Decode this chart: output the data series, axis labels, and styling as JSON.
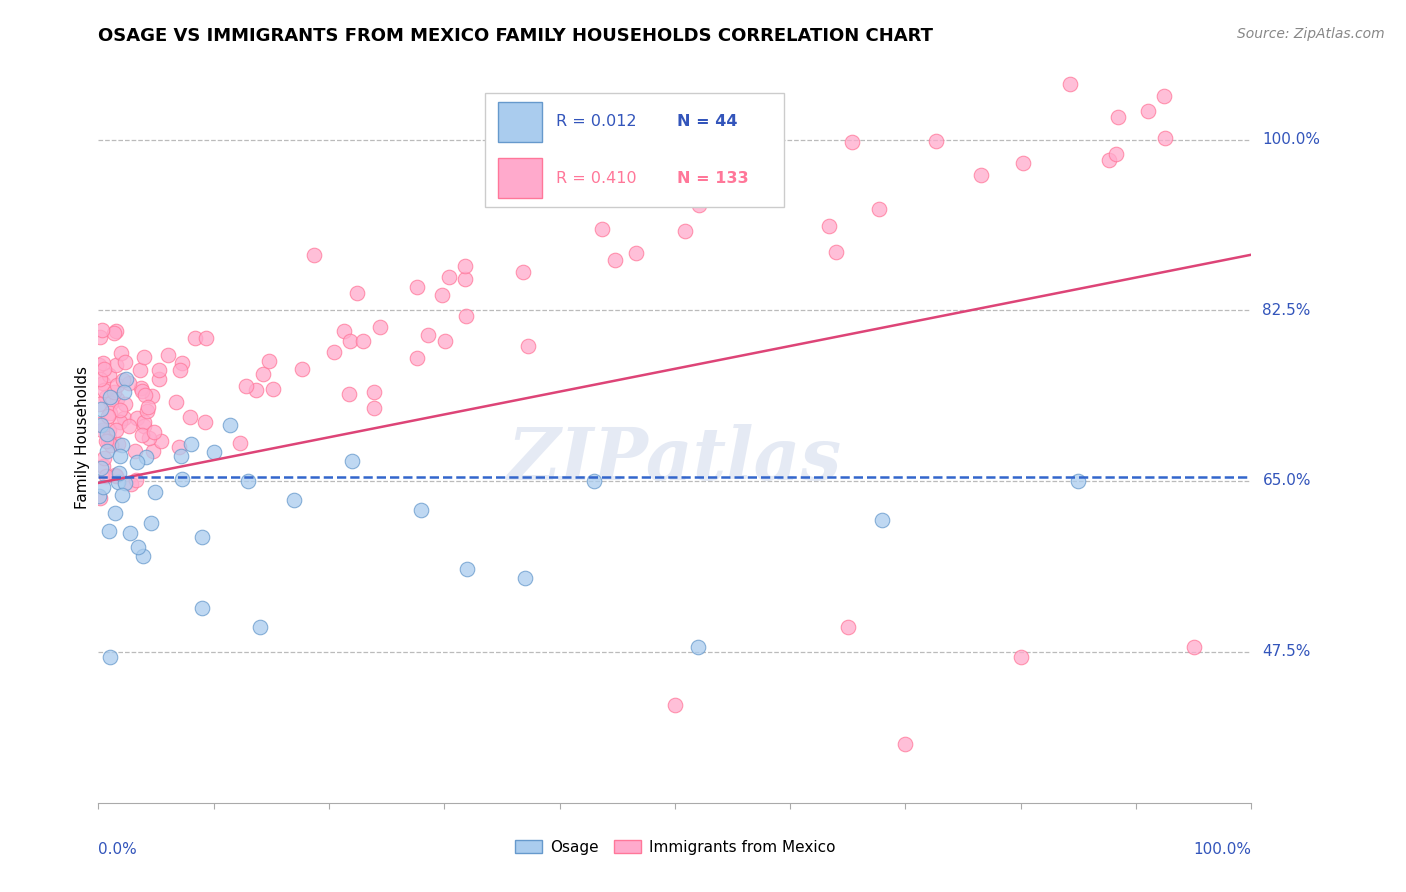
{
  "title": "OSAGE VS IMMIGRANTS FROM MEXICO FAMILY HOUSEHOLDS CORRELATION CHART",
  "source": "Source: ZipAtlas.com",
  "ylabel": "Family Households",
  "xlim": [
    0,
    1
  ],
  "ylim": [
    0.32,
    1.07
  ],
  "yticks": [
    0.475,
    0.65,
    0.825,
    1.0
  ],
  "ytick_labels": [
    "47.5%",
    "65.0%",
    "82.5%",
    "100.0%"
  ],
  "legend_r_blue": "R = 0.012",
  "legend_n_blue": "N = 44",
  "legend_r_pink": "R = 0.410",
  "legend_n_pink": "N = 133",
  "blue_line_color": "#3366CC",
  "pink_line_color": "#DD4477",
  "blue_scatter_face": "#AACCEE",
  "blue_scatter_edge": "#6699CC",
  "pink_scatter_face": "#FFAACC",
  "pink_scatter_edge": "#FF7799",
  "watermark_color": "#AABBDD",
  "grid_color": "#BBBBBB",
  "label_color": "#3355BB",
  "legend_box_color": "#DDDDDD"
}
